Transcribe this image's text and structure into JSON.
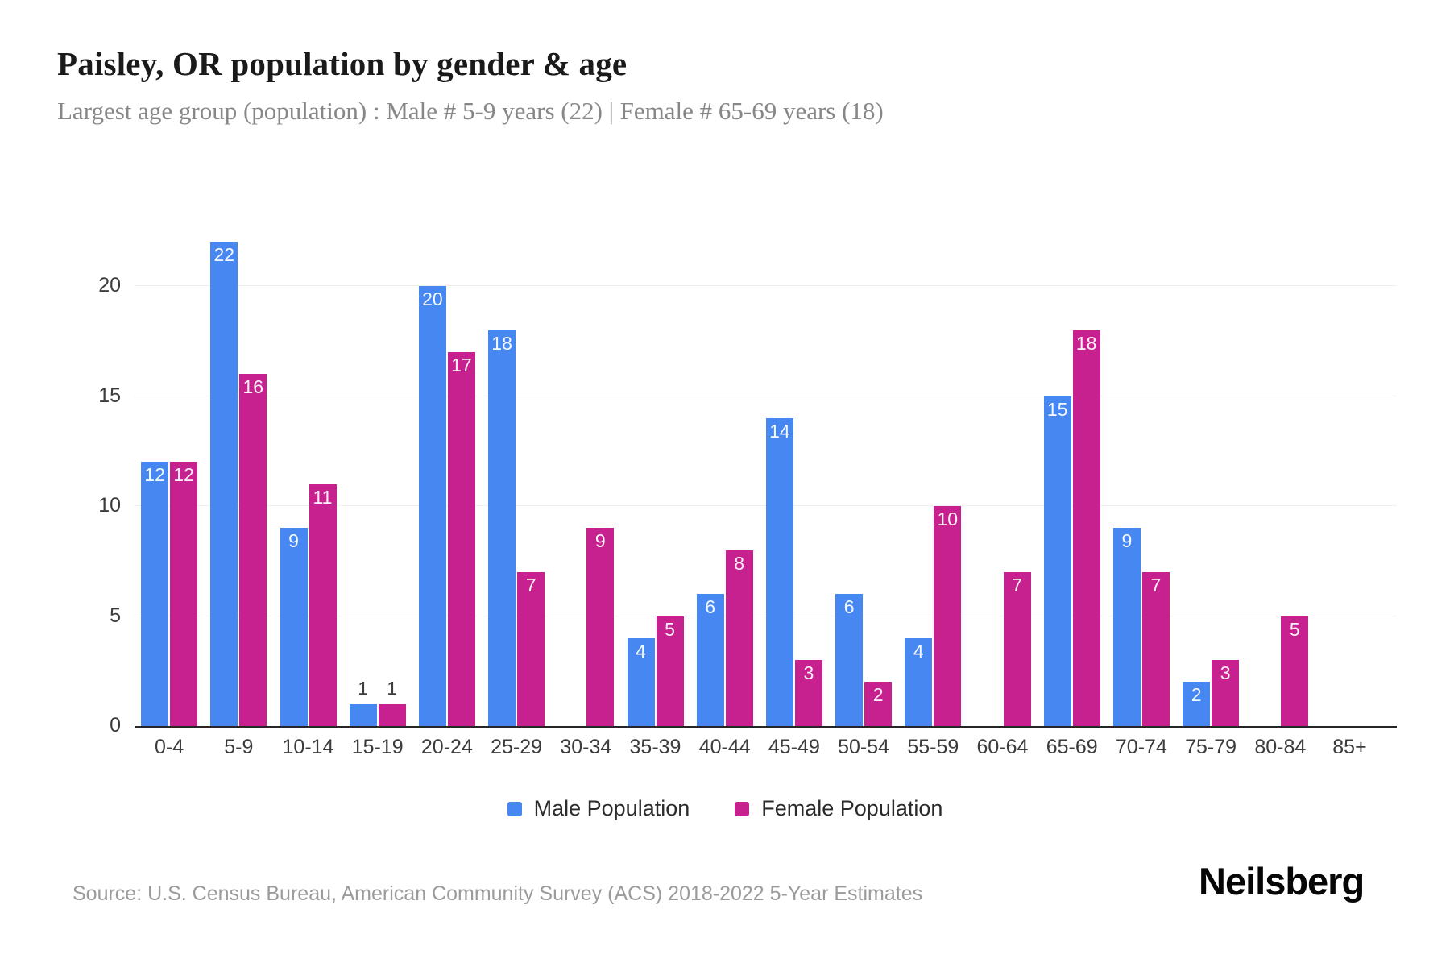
{
  "header": {
    "title": "Paisley, OR population by gender & age",
    "subtitle": "Largest age group (population) : Male # 5-9 years (22) | Female # 65-69 years (18)"
  },
  "chart_data": {
    "type": "bar",
    "title": "Paisley, OR population by gender & age",
    "subtitle": "Largest age group (population) : Male # 5-9 years (22) | Female # 65-69 years (18)",
    "categories": [
      "0-4",
      "5-9",
      "10-14",
      "15-19",
      "20-24",
      "25-29",
      "30-34",
      "35-39",
      "40-44",
      "45-49",
      "50-54",
      "55-59",
      "60-64",
      "65-69",
      "70-74",
      "75-79",
      "80-84",
      "85+"
    ],
    "series": [
      {
        "name": "Male Population",
        "color": "#4687f1",
        "values": [
          12,
          22,
          9,
          1,
          20,
          18,
          0,
          4,
          6,
          14,
          6,
          4,
          0,
          15,
          9,
          2,
          0,
          0
        ]
      },
      {
        "name": "Female Population",
        "color": "#c7218f",
        "values": [
          12,
          16,
          11,
          1,
          17,
          7,
          9,
          5,
          8,
          3,
          2,
          10,
          7,
          18,
          7,
          3,
          5,
          0
        ]
      }
    ],
    "ylabel": "",
    "xlabel": "",
    "ylim": [
      0,
      22
    ],
    "yticks": [
      0,
      5,
      10,
      15,
      20
    ],
    "grid": true,
    "legend_position": "bottom",
    "bar_label_placement": "inside-top, outside when value <= 1"
  },
  "legend": {
    "items": [
      {
        "label": "Male Population",
        "color": "#4687f1"
      },
      {
        "label": "Female Population",
        "color": "#c7218f"
      }
    ]
  },
  "footer": {
    "source": "Source: U.S. Census Bureau, American Community Survey (ACS) 2018-2022 5-Year Estimates",
    "logo": "Neilsberg"
  }
}
